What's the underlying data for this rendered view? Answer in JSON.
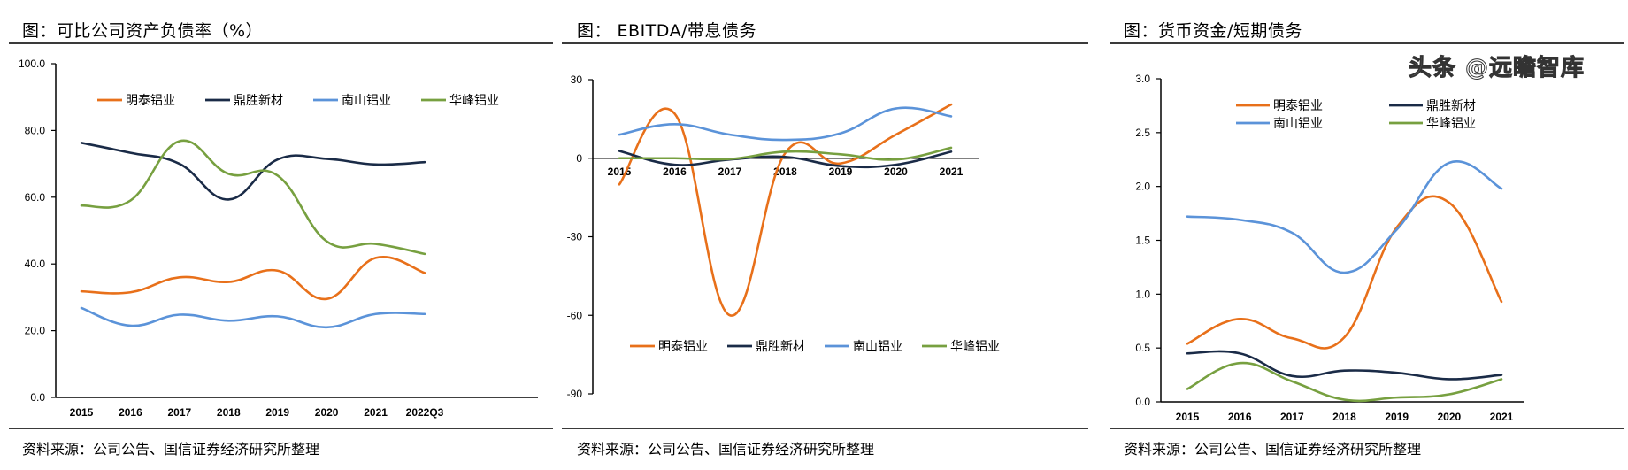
{
  "panels": [
    {
      "title": "图：可比公司资产负债率（%）",
      "source": "资料来源：公司公告、国信证券经济研究所整理"
    },
    {
      "title": "图： EBITDA/带息债务",
      "source": "资料来源：公司公告、国信证券经济研究所整理"
    },
    {
      "title": "图：货币资金/短期债务",
      "source": "资料来源：公司公告、国信证券经济研究所整理"
    }
  ],
  "watermark": "头条 @远瞻智库",
  "colors": {
    "明泰铝业": "#E8701A",
    "鼎胜新材": "#1A2B47",
    "南山铝业": "#5B93D9",
    "华峰铝业": "#77A040"
  },
  "chart_data": [
    {
      "type": "line",
      "title": "图：可比公司资产负债率（%）",
      "categories": [
        "2015",
        "2016",
        "2017",
        "2018",
        "2019",
        "2020",
        "2021",
        "2022Q3"
      ],
      "yticks": [
        "100.0",
        "80.0",
        "60.0",
        "40.0",
        "20.0",
        "0.0"
      ],
      "ylim": [
        0,
        100
      ],
      "legend_position": "top",
      "smooth": true,
      "series": [
        {
          "name": "明泰铝业",
          "values": [
            31.8,
            31.5,
            36.0,
            34.6,
            38.0,
            29.5,
            41.8,
            37.3
          ]
        },
        {
          "name": "鼎胜新材",
          "values": [
            76.3,
            73.3,
            70.0,
            59.3,
            71.3,
            71.5,
            69.8,
            70.5
          ]
        },
        {
          "name": "南山铝业",
          "values": [
            26.8,
            21.5,
            24.8,
            23.0,
            24.3,
            21.0,
            25.0,
            25.0
          ]
        },
        {
          "name": "华峰铝业",
          "values": [
            57.5,
            59.0,
            76.8,
            67.0,
            66.5,
            46.8,
            46.0,
            43.0
          ]
        }
      ]
    },
    {
      "type": "line",
      "title": "图： EBITDA/带息债务",
      "categories": [
        "2015",
        "2016",
        "2017",
        "2018",
        "2019",
        "2020",
        "2021"
      ],
      "yticks": [
        "30",
        "0",
        "-30",
        "-60",
        "-90"
      ],
      "ylim": [
        -90,
        30
      ],
      "legend_position": "bottom",
      "smooth": true,
      "series": [
        {
          "name": "明泰铝业",
          "values": [
            -10,
            17,
            -60,
            2,
            -2,
            9,
            20.5
          ]
        },
        {
          "name": "鼎胜新材",
          "values": [
            2.8,
            -2.5,
            -0.5,
            0.5,
            -3,
            -2.5,
            2.5
          ]
        },
        {
          "name": "南山铝业",
          "values": [
            9,
            13,
            9,
            7,
            9.5,
            19,
            16
          ]
        },
        {
          "name": "华峰铝业",
          "values": [
            0,
            0,
            -0.3,
            2.5,
            1.5,
            -0.5,
            4
          ]
        }
      ]
    },
    {
      "type": "line",
      "title": "图：货币资金/短期债务",
      "categories": [
        "2015",
        "2016",
        "2017",
        "2018",
        "2019",
        "2020",
        "2021"
      ],
      "yticks": [
        "3.0",
        "2.5",
        "2.0",
        "1.5",
        "1.0",
        "0.5",
        "0.0"
      ],
      "ylim": [
        0,
        3
      ],
      "legend_position": "top",
      "smooth": true,
      "series": [
        {
          "name": "明泰铝业",
          "values": [
            0.54,
            0.77,
            0.59,
            0.6,
            1.62,
            1.85,
            0.93
          ]
        },
        {
          "name": "鼎胜新材",
          "values": [
            0.45,
            0.45,
            0.24,
            0.29,
            0.27,
            0.21,
            0.25
          ]
        },
        {
          "name": "南山铝业",
          "values": [
            1.72,
            1.69,
            1.57,
            1.2,
            1.6,
            2.22,
            1.98
          ]
        },
        {
          "name": "华峰铝业",
          "values": [
            0.12,
            0.36,
            0.19,
            0.02,
            0.04,
            0.07,
            0.21
          ]
        }
      ]
    }
  ]
}
